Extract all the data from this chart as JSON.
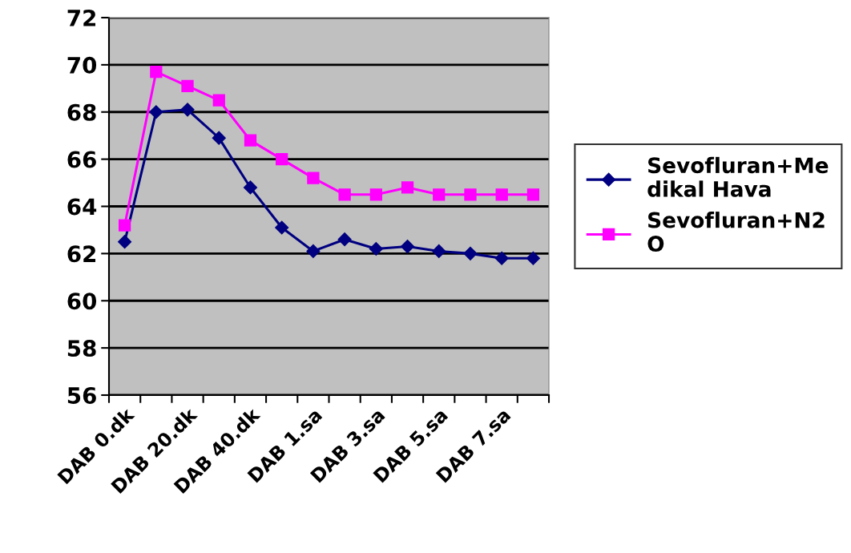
{
  "chart_data": {
    "type": "line",
    "categories": [
      "DAB 0.dk",
      null,
      "DAB 20.dk",
      null,
      "DAB 40.dk",
      null,
      "DAB 1.sa",
      null,
      "DAB 3.sa",
      null,
      "DAB 5.sa",
      null,
      "DAB 7.sa",
      null
    ],
    "series": [
      {
        "name": "Sevofluran+Medikal Hava",
        "color": "#000080",
        "marker": "diamond",
        "values": [
          62.5,
          68.0,
          68.1,
          66.9,
          64.8,
          63.1,
          62.1,
          62.6,
          62.2,
          62.3,
          62.1,
          62.0,
          61.8,
          61.8
        ]
      },
      {
        "name": "Sevofluran+N2O",
        "color": "#ff00ff",
        "marker": "square",
        "values": [
          63.2,
          69.7,
          69.1,
          68.5,
          66.8,
          66.0,
          65.2,
          64.5,
          64.5,
          64.8,
          64.5,
          64.5,
          64.5,
          64.5
        ]
      }
    ],
    "ylim": [
      56,
      72
    ],
    "yticks": [
      56,
      58,
      60,
      62,
      64,
      66,
      68,
      70,
      72
    ],
    "grid": "y",
    "legend": "right"
  }
}
